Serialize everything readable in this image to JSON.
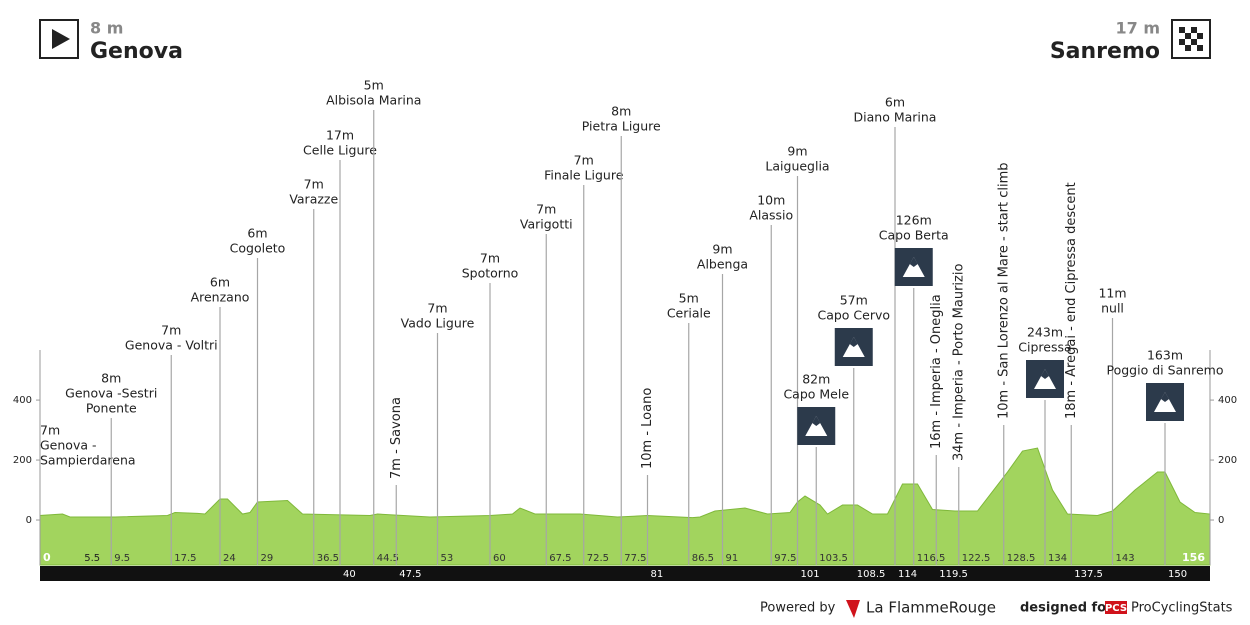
{
  "header": {
    "start": {
      "elevation": "8 m",
      "name": "Genova"
    },
    "finish": {
      "elevation": "17 m",
      "name": "Sanremo"
    }
  },
  "chart_data": {
    "type": "area",
    "color": "#a2d45e",
    "xlim": [
      0,
      156
    ],
    "ylim": [
      -150,
      567
    ],
    "yticks": [
      0,
      200,
      400
    ],
    "profile": {
      "km": [
        0,
        3,
        4,
        10,
        17,
        18,
        21,
        22,
        24,
        25,
        27,
        28,
        29,
        33,
        35,
        44,
        45,
        52,
        60,
        63,
        64,
        66,
        72,
        77,
        81,
        87,
        88,
        90,
        94,
        97,
        100,
        101,
        102,
        104,
        105,
        107,
        109,
        111,
        113,
        115,
        117,
        119,
        122,
        125,
        129,
        131,
        133,
        135,
        137,
        141,
        143,
        146,
        149,
        150,
        152,
        154,
        156
      ],
      "elevation": [
        15,
        20,
        10,
        10,
        15,
        25,
        22,
        20,
        70,
        70,
        20,
        25,
        60,
        65,
        20,
        15,
        20,
        10,
        15,
        20,
        40,
        20,
        20,
        10,
        15,
        8,
        10,
        30,
        40,
        20,
        25,
        60,
        80,
        50,
        20,
        50,
        50,
        20,
        20,
        120,
        120,
        35,
        30,
        30,
        160,
        230,
        240,
        100,
        20,
        15,
        30,
        100,
        160,
        160,
        60,
        25,
        20
      ]
    },
    "extra_km": [
      5.5
    ],
    "waypoints": [
      {
        "km": 0,
        "elevation": "7m",
        "name": [
          "Genova -",
          "Sampierdarena"
        ]
      },
      {
        "km": 9.5,
        "elevation": "8m",
        "name": [
          "Genova -Sestri",
          "Ponente"
        ]
      },
      {
        "km": 17.5,
        "elevation": "7m",
        "name": "Genova - Voltri"
      },
      {
        "km": 24,
        "elevation": "6m",
        "name": "Arenzano"
      },
      {
        "km": 29,
        "elevation": "6m",
        "name": "Cogoleto"
      },
      {
        "km": 36.5,
        "elevation": "7m",
        "name": "Varazze"
      },
      {
        "km": 40,
        "elevation": "17m",
        "name": "Celle Ligure",
        "strip": true
      },
      {
        "km": 44.5,
        "elevation": "5m",
        "name": "Albisola Marina"
      },
      {
        "km": 47.5,
        "label": "7m  -  Savona",
        "strip": true
      },
      {
        "km": 53,
        "elevation": "7m",
        "name": "Vado Ligure"
      },
      {
        "km": 60,
        "elevation": "7m",
        "name": "Spotorno"
      },
      {
        "km": 67.5,
        "elevation": "7m",
        "name": "Varigotti"
      },
      {
        "km": 72.5,
        "elevation": "7m",
        "name": "Finale Ligure"
      },
      {
        "km": 77.5,
        "elevation": "8m",
        "name": "Pietra Ligure"
      },
      {
        "km": 81,
        "label": "10m  -  Loano",
        "strip": true
      },
      {
        "km": 86.5,
        "elevation": "5m",
        "name": "Ceriale"
      },
      {
        "km": 91,
        "elevation": "9m",
        "name": "Albenga"
      },
      {
        "km": 97.5,
        "elevation": "10m",
        "name": "Alassio"
      },
      {
        "km": 101,
        "elevation": "9m",
        "name": "Laigueglia",
        "strip": true
      },
      {
        "km": 103.5,
        "elevation": "82m",
        "name": "Capo Mele",
        "climb": true
      },
      {
        "km": 108.5,
        "elevation": "57m",
        "name": "Capo Cervo",
        "climb": true,
        "strip": true
      },
      {
        "km": 114,
        "elevation": "6m",
        "name": "Diano Marina",
        "strip": true
      },
      {
        "km": 116.5,
        "elevation": "126m",
        "name": "Capo Berta",
        "climb": true
      },
      {
        "km": 119.5,
        "label": "16m  -  Imperia  -  Oneglia",
        "strip": true
      },
      {
        "km": 122.5,
        "label": "34m  -  Imperia  -  Porto Maurizio"
      },
      {
        "km": 128.5,
        "label": "10m  -  San Lorenzo al Mare  -  start climb"
      },
      {
        "km": 134,
        "elevation": "243m",
        "name": "Cipressa",
        "climb": true
      },
      {
        "km": 137.5,
        "label": "18m  -  Aregai  -  end Cipressa descent",
        "strip": true
      },
      {
        "km": 143,
        "elevation": "11m",
        "name": "null"
      },
      {
        "km": 150,
        "elevation": "163m",
        "name": "Poggio di Sanremo",
        "climb": true,
        "strip": true
      }
    ]
  },
  "footer": {
    "powered_by": "Powered by",
    "brand": "La FlammeRouge",
    "designed_for": "designed for",
    "pcs": "PCS",
    "site": "ProCyclingStats"
  }
}
